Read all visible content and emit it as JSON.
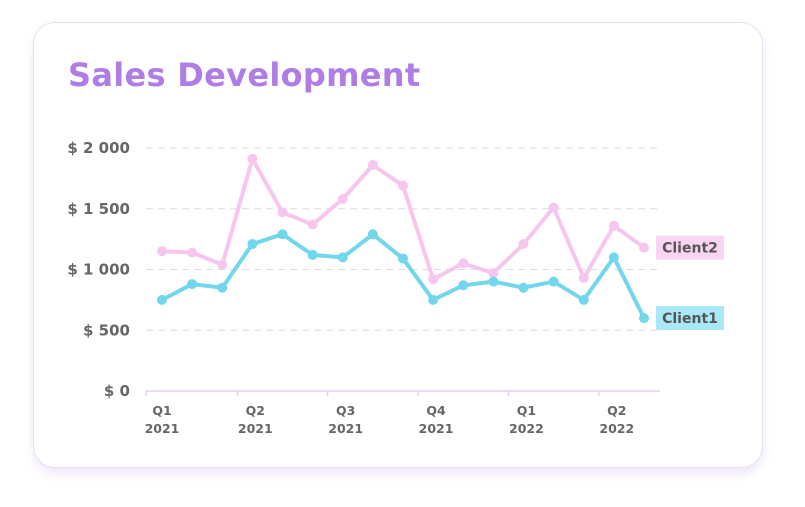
{
  "chart_data": {
    "type": "line",
    "title": "Sales Development",
    "x": [
      "2021-Q1a",
      "2021-Q1b",
      "2021-Q1c",
      "2021-Q2a",
      "2021-Q2b",
      "2021-Q2c",
      "2021-Q3a",
      "2021-Q3b",
      "2021-Q3c",
      "2021-Q4a",
      "2021-Q4b",
      "2021-Q4c",
      "2022-Q1a",
      "2022-Q1b",
      "2022-Q1c",
      "2022-Q2a",
      "2022-Q2b"
    ],
    "tick_labels": [
      {
        "quarter": "Q1",
        "year": "2021"
      },
      {
        "quarter": "Q2",
        "year": "2021"
      },
      {
        "quarter": "Q3",
        "year": "2021"
      },
      {
        "quarter": "Q4",
        "year": "2021"
      },
      {
        "quarter": "Q1",
        "year": "2022"
      },
      {
        "quarter": "Q2",
        "year": "2022"
      }
    ],
    "y_ticks": [
      "$ 0",
      "$ 500",
      "$ 1 000",
      "$ 1 500",
      "$ 2 000"
    ],
    "ylim": [
      0,
      2000
    ],
    "grid": true,
    "series": [
      {
        "name": "Client2",
        "color": "#f7c6ef",
        "label_bg": "#fad4f3",
        "values": [
          1150,
          1140,
          1040,
          1910,
          1470,
          1370,
          1580,
          1860,
          1690,
          920,
          1050,
          970,
          1210,
          1510,
          930,
          1360,
          1180
        ]
      },
      {
        "name": "Client1",
        "color": "#72d6ec",
        "label_bg": "#a9e8f6",
        "values": [
          750,
          880,
          850,
          1210,
          1290,
          1120,
          1100,
          1290,
          1090,
          750,
          870,
          900,
          850,
          900,
          750,
          1100,
          600
        ]
      }
    ]
  }
}
